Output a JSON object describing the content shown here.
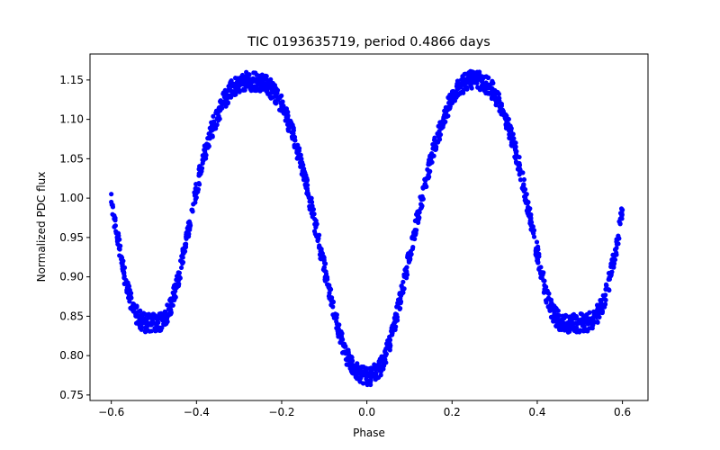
{
  "chart_data": {
    "type": "scatter",
    "title": "TIC 0193635719, period 0.4866 days",
    "xlabel": "Phase",
    "ylabel": "Normalized PDC flux",
    "xlim": [
      -0.65,
      0.66
    ],
    "ylim": [
      0.743,
      1.183
    ],
    "xticks": [
      -0.6,
      -0.4,
      -0.2,
      0.0,
      0.2,
      0.4,
      0.6
    ],
    "xtick_labels": [
      "−0.6",
      "−0.4",
      "−0.2",
      "0.0",
      "0.2",
      "0.4",
      "0.6"
    ],
    "yticks": [
      0.75,
      0.8,
      0.85,
      0.9,
      0.95,
      1.0,
      1.05,
      1.1,
      1.15
    ],
    "ytick_labels": [
      "0.75",
      "0.80",
      "0.85",
      "0.90",
      "0.95",
      "1.00",
      "1.05",
      "1.10",
      "1.15"
    ],
    "grid": false,
    "marker_color": "#0000ff",
    "series": [
      {
        "points": [
          [
            -0.6,
            0.995
          ],
          [
            -0.59,
            0.965
          ],
          [
            -0.58,
            0.935
          ],
          [
            -0.57,
            0.905
          ],
          [
            -0.56,
            0.88
          ],
          [
            -0.55,
            0.863
          ],
          [
            -0.54,
            0.851
          ],
          [
            -0.53,
            0.845
          ],
          [
            -0.52,
            0.842
          ],
          [
            -0.51,
            0.841
          ],
          [
            -0.5,
            0.841
          ],
          [
            -0.49,
            0.842
          ],
          [
            -0.48,
            0.845
          ],
          [
            -0.47,
            0.852
          ],
          [
            -0.46,
            0.864
          ],
          [
            -0.45,
            0.882
          ],
          [
            -0.44,
            0.905
          ],
          [
            -0.43,
            0.93
          ],
          [
            -0.42,
            0.958
          ],
          [
            -0.41,
            0.985
          ],
          [
            -0.4,
            1.012
          ],
          [
            -0.39,
            1.036
          ],
          [
            -0.38,
            1.058
          ],
          [
            -0.37,
            1.077
          ],
          [
            -0.36,
            1.093
          ],
          [
            -0.35,
            1.107
          ],
          [
            -0.34,
            1.119
          ],
          [
            -0.33,
            1.129
          ],
          [
            -0.32,
            1.137
          ],
          [
            -0.31,
            1.142
          ],
          [
            -0.3,
            1.146
          ],
          [
            -0.29,
            1.148
          ],
          [
            -0.28,
            1.149
          ],
          [
            -0.27,
            1.148
          ],
          [
            -0.26,
            1.148
          ],
          [
            -0.25,
            1.147
          ],
          [
            -0.24,
            1.145
          ],
          [
            -0.23,
            1.141
          ],
          [
            -0.22,
            1.136
          ],
          [
            -0.21,
            1.128
          ],
          [
            -0.2,
            1.118
          ],
          [
            -0.19,
            1.106
          ],
          [
            -0.18,
            1.091
          ],
          [
            -0.17,
            1.074
          ],
          [
            -0.16,
            1.055
          ],
          [
            -0.15,
            1.034
          ],
          [
            -0.14,
            1.012
          ],
          [
            -0.13,
            0.988
          ],
          [
            -0.12,
            0.963
          ],
          [
            -0.11,
            0.937
          ],
          [
            -0.1,
            0.912
          ],
          [
            -0.09,
            0.887
          ],
          [
            -0.08,
            0.862
          ],
          [
            -0.07,
            0.84
          ],
          [
            -0.06,
            0.82
          ],
          [
            -0.05,
            0.803
          ],
          [
            -0.04,
            0.791
          ],
          [
            -0.03,
            0.782
          ],
          [
            -0.02,
            0.777
          ],
          [
            -0.01,
            0.775
          ],
          [
            0.0,
            0.774
          ],
          [
            0.01,
            0.775
          ],
          [
            0.02,
            0.778
          ],
          [
            0.03,
            0.784
          ],
          [
            0.04,
            0.795
          ],
          [
            0.05,
            0.81
          ],
          [
            0.06,
            0.829
          ],
          [
            0.07,
            0.852
          ],
          [
            0.08,
            0.876
          ],
          [
            0.09,
            0.901
          ],
          [
            0.1,
            0.927
          ],
          [
            0.11,
            0.953
          ],
          [
            0.12,
            0.978
          ],
          [
            0.13,
            1.002
          ],
          [
            0.14,
            1.025
          ],
          [
            0.15,
            1.047
          ],
          [
            0.16,
            1.067
          ],
          [
            0.17,
            1.085
          ],
          [
            0.18,
            1.101
          ],
          [
            0.19,
            1.115
          ],
          [
            0.2,
            1.126
          ],
          [
            0.21,
            1.135
          ],
          [
            0.22,
            1.141
          ],
          [
            0.23,
            1.146
          ],
          [
            0.24,
            1.149
          ],
          [
            0.25,
            1.15
          ],
          [
            0.26,
            1.15
          ],
          [
            0.27,
            1.148
          ],
          [
            0.28,
            1.145
          ],
          [
            0.29,
            1.14
          ],
          [
            0.3,
            1.132
          ],
          [
            0.31,
            1.122
          ],
          [
            0.32,
            1.11
          ],
          [
            0.33,
            1.095
          ],
          [
            0.34,
            1.078
          ],
          [
            0.35,
            1.058
          ],
          [
            0.36,
            1.036
          ],
          [
            0.37,
            1.011
          ],
          [
            0.38,
            0.984
          ],
          [
            0.39,
            0.957
          ],
          [
            0.4,
            0.93
          ],
          [
            0.41,
            0.904
          ],
          [
            0.42,
            0.881
          ],
          [
            0.43,
            0.863
          ],
          [
            0.44,
            0.852
          ],
          [
            0.45,
            0.845
          ],
          [
            0.46,
            0.842
          ],
          [
            0.47,
            0.841
          ],
          [
            0.48,
            0.841
          ],
          [
            0.49,
            0.841
          ],
          [
            0.5,
            0.842
          ],
          [
            0.51,
            0.842
          ],
          [
            0.52,
            0.843
          ],
          [
            0.53,
            0.846
          ],
          [
            0.54,
            0.852
          ],
          [
            0.55,
            0.862
          ],
          [
            0.56,
            0.877
          ],
          [
            0.57,
            0.897
          ],
          [
            0.58,
            0.922
          ],
          [
            0.59,
            0.952
          ],
          [
            0.6,
            0.985
          ]
        ],
        "scatter_spread": 0.012
      }
    ]
  }
}
